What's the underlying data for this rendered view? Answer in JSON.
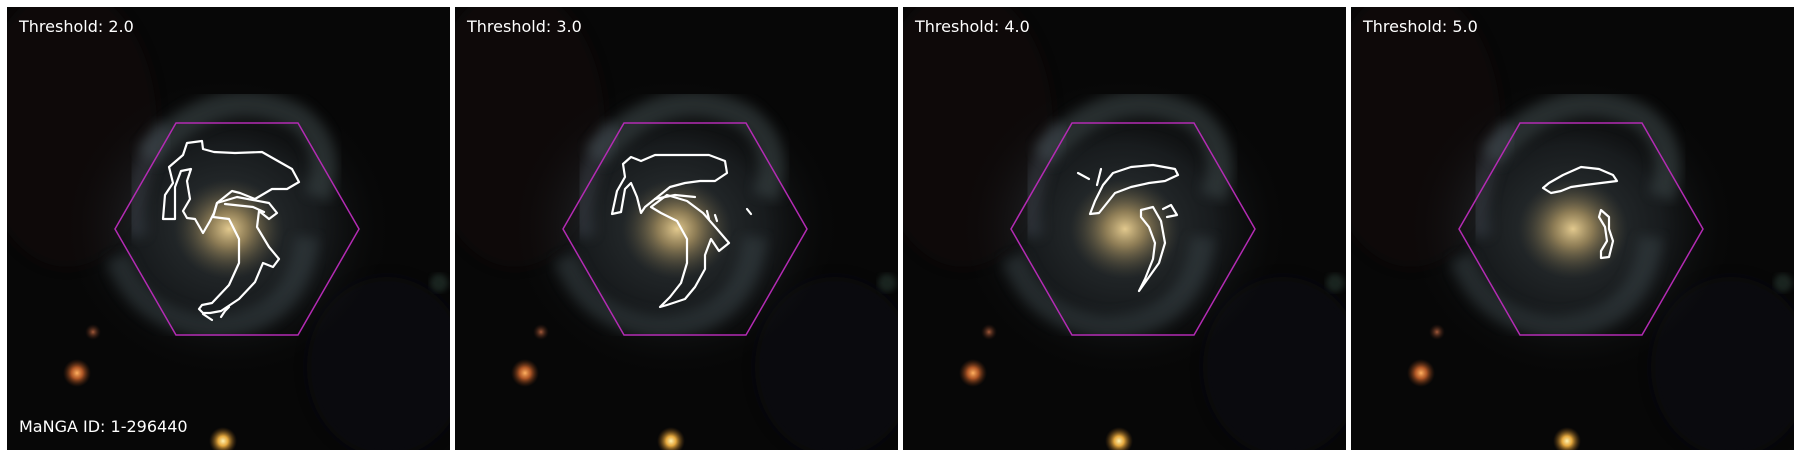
{
  "panels": [
    {
      "threshold_label": "Threshold: 2.0"
    },
    {
      "threshold_label": "Threshold: 3.0"
    },
    {
      "threshold_label": "Threshold: 4.0"
    },
    {
      "threshold_label": "Threshold: 5.0"
    }
  ],
  "manga_id_label": "MaNGA ID: 1-296440",
  "colors": {
    "hexagon": "#b32bb3",
    "contour": "#ffffff",
    "background": "#050505",
    "galaxy_core": "#bca46a"
  }
}
